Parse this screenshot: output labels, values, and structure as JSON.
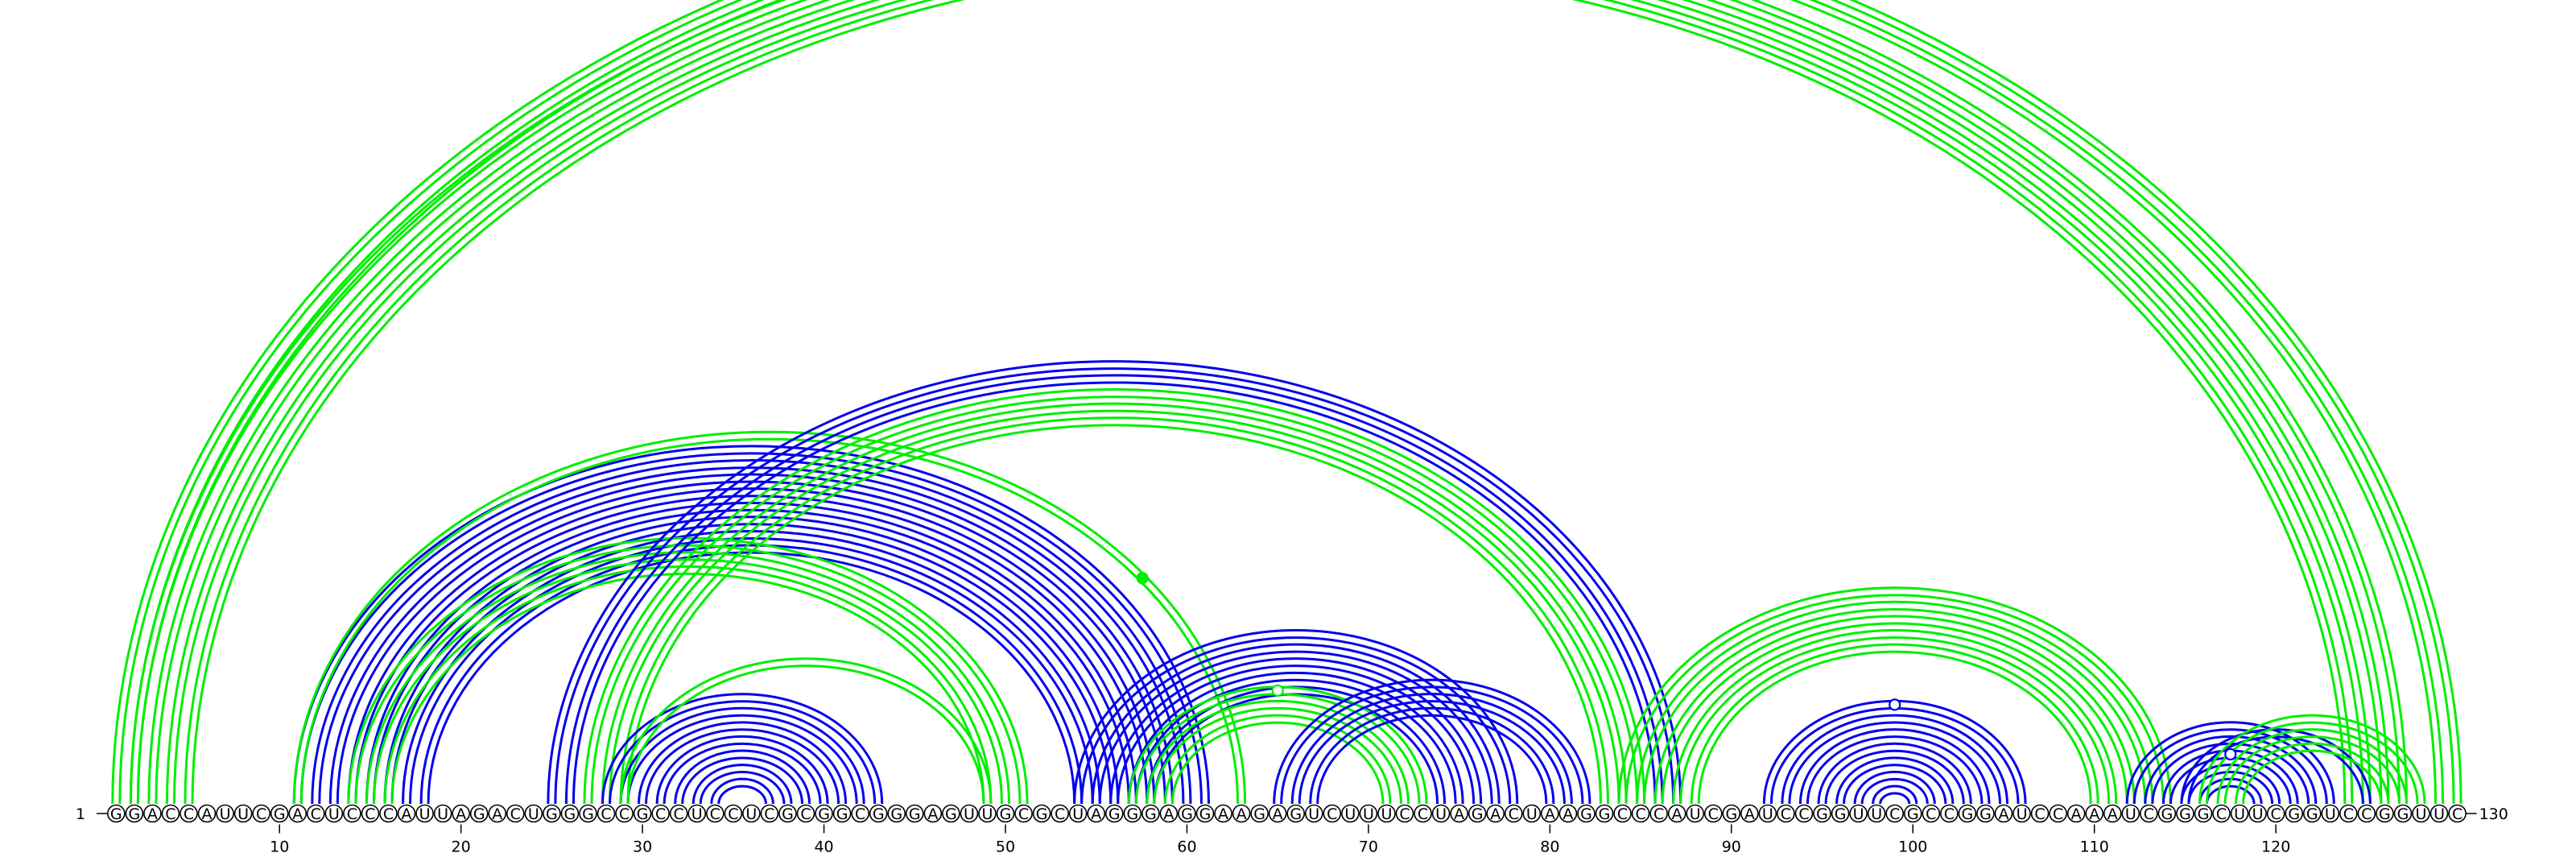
{
  "sequence": "GGACCAUUCGACUCCCAUUAGACUGGGCCGCCUCCUCGCGGCGGGAGUUGCGCUAGGGAGGAAGAGUCUUUCCUAGACUAAGGCCCAUCGAUCCGGUUCGCCGGAUCCAAAUCGGGCUUCGGUCCGGUUC",
  "start_label": "1",
  "end_label": "130",
  "ticks": [
    10,
    20,
    30,
    40,
    50,
    60,
    70,
    80,
    90,
    100,
    110,
    120
  ],
  "colors": {
    "blue": "#0000ee",
    "green": "#00ee00"
  },
  "helices": [
    {
      "color": "green",
      "i": 1,
      "j": 130,
      "n": 2,
      "double": true,
      "marker": {
        "style": "open",
        "at": 1
      }
    },
    {
      "color": "green",
      "i": 2,
      "j": 127,
      "n": 4,
      "double": true
    },
    {
      "color": "blue",
      "i": 11,
      "j": 61,
      "n": 8,
      "double": true
    },
    {
      "color": "green",
      "i": 11,
      "j": 63,
      "n": 1,
      "double": true,
      "marker": {
        "style": "filled",
        "at": 0.79
      }
    },
    {
      "color": "green",
      "i": 14,
      "j": 51,
      "n": 3,
      "double": true
    },
    {
      "color": "blue",
      "i": 25,
      "j": 87,
      "n": 2,
      "double": true
    },
    {
      "color": "green",
      "i": 27,
      "j": 85,
      "n": 3,
      "double": true
    },
    {
      "color": "blue",
      "i": 28,
      "j": 43,
      "n": 7,
      "double": true
    },
    {
      "color": "green",
      "i": 29,
      "j": 49,
      "n": 1,
      "double": true
    },
    {
      "color": "blue",
      "i": 54,
      "j": 78,
      "n": 5,
      "double": true
    },
    {
      "color": "green",
      "i": 57,
      "j": 73,
      "n": 3,
      "double": true,
      "marker": {
        "style": "open",
        "at": 1
      }
    },
    {
      "color": "blue",
      "i": 65,
      "j": 82,
      "n": 3,
      "double": true
    },
    {
      "color": "green",
      "i": 84,
      "j": 114,
      "n": 5,
      "double": true
    },
    {
      "color": "blue",
      "i": 92,
      "j": 106,
      "n": 7,
      "double": true,
      "marker": {
        "style": "open",
        "at": 1
      }
    },
    {
      "color": "blue",
      "i": 112,
      "j": 123,
      "n": 5,
      "double": true,
      "marker": {
        "style": "open",
        "at": 3
      }
    },
    {
      "color": "blue",
      "i": 115,
      "j": 125,
      "n": 1,
      "double": true
    },
    {
      "color": "green",
      "i": 116,
      "j": 128,
      "n": 3,
      "double": true
    }
  ]
}
